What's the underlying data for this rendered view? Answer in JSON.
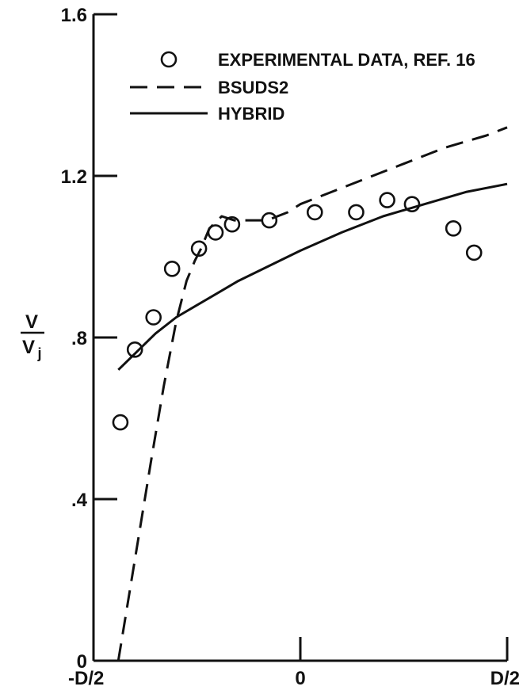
{
  "chart_data": {
    "type": "line",
    "xlabel": "",
    "ylabel": "V/Vj",
    "ylabel_parts": {
      "numerator": "V",
      "denominator": "V",
      "subscript": "j"
    },
    "xlim": [
      -0.5,
      0.5
    ],
    "ylim": [
      0,
      1.6
    ],
    "xticks": [
      {
        "value": -0.5,
        "label": "-D/2"
      },
      {
        "value": 0,
        "label": "0"
      },
      {
        "value": 0.5,
        "label": "D/2"
      }
    ],
    "yticks": [
      {
        "value": 0,
        "label": "0"
      },
      {
        "value": 0.4,
        "label": ".4"
      },
      {
        "value": 0.8,
        "label": ".8"
      },
      {
        "value": 1.2,
        "label": "1.2"
      },
      {
        "value": 1.6,
        "label": "1.6"
      }
    ],
    "legend_position": "top-right",
    "series": [
      {
        "name": "EXPERIMENTAL DATA, REF. 16",
        "style": "circles",
        "x": [
          -0.435,
          -0.4,
          -0.355,
          -0.31,
          -0.245,
          -0.205,
          -0.165,
          -0.075,
          0.035,
          0.135,
          0.21,
          0.27,
          0.37,
          0.42
        ],
        "y": [
          0.59,
          0.77,
          0.85,
          0.97,
          1.02,
          1.06,
          1.08,
          1.09,
          1.11,
          1.11,
          1.14,
          1.13,
          1.07,
          1.01
        ]
      },
      {
        "name": "BSUDS2",
        "style": "dashed",
        "x": [
          -0.44,
          -0.4,
          -0.36,
          -0.33,
          -0.3,
          -0.275,
          -0.255,
          -0.24,
          -0.22,
          -0.19,
          -0.16,
          -0.12,
          -0.08,
          -0.03,
          0.0,
          0.05,
          0.15,
          0.25,
          0.35,
          0.45,
          0.5
        ],
        "y": [
          0.0,
          0.25,
          0.5,
          0.68,
          0.84,
          0.94,
          0.99,
          1.02,
          1.07,
          1.1,
          1.09,
          1.09,
          1.09,
          1.11,
          1.13,
          1.15,
          1.19,
          1.23,
          1.27,
          1.3,
          1.32
        ]
      },
      {
        "name": "HYBRID",
        "style": "solid",
        "x": [
          -0.44,
          -0.4,
          -0.35,
          -0.3,
          -0.25,
          -0.2,
          -0.15,
          -0.1,
          -0.05,
          0.0,
          0.1,
          0.2,
          0.3,
          0.4,
          0.5
        ],
        "y": [
          0.72,
          0.76,
          0.81,
          0.85,
          0.88,
          0.91,
          0.94,
          0.965,
          0.99,
          1.015,
          1.06,
          1.1,
          1.13,
          1.16,
          1.18
        ]
      }
    ]
  }
}
